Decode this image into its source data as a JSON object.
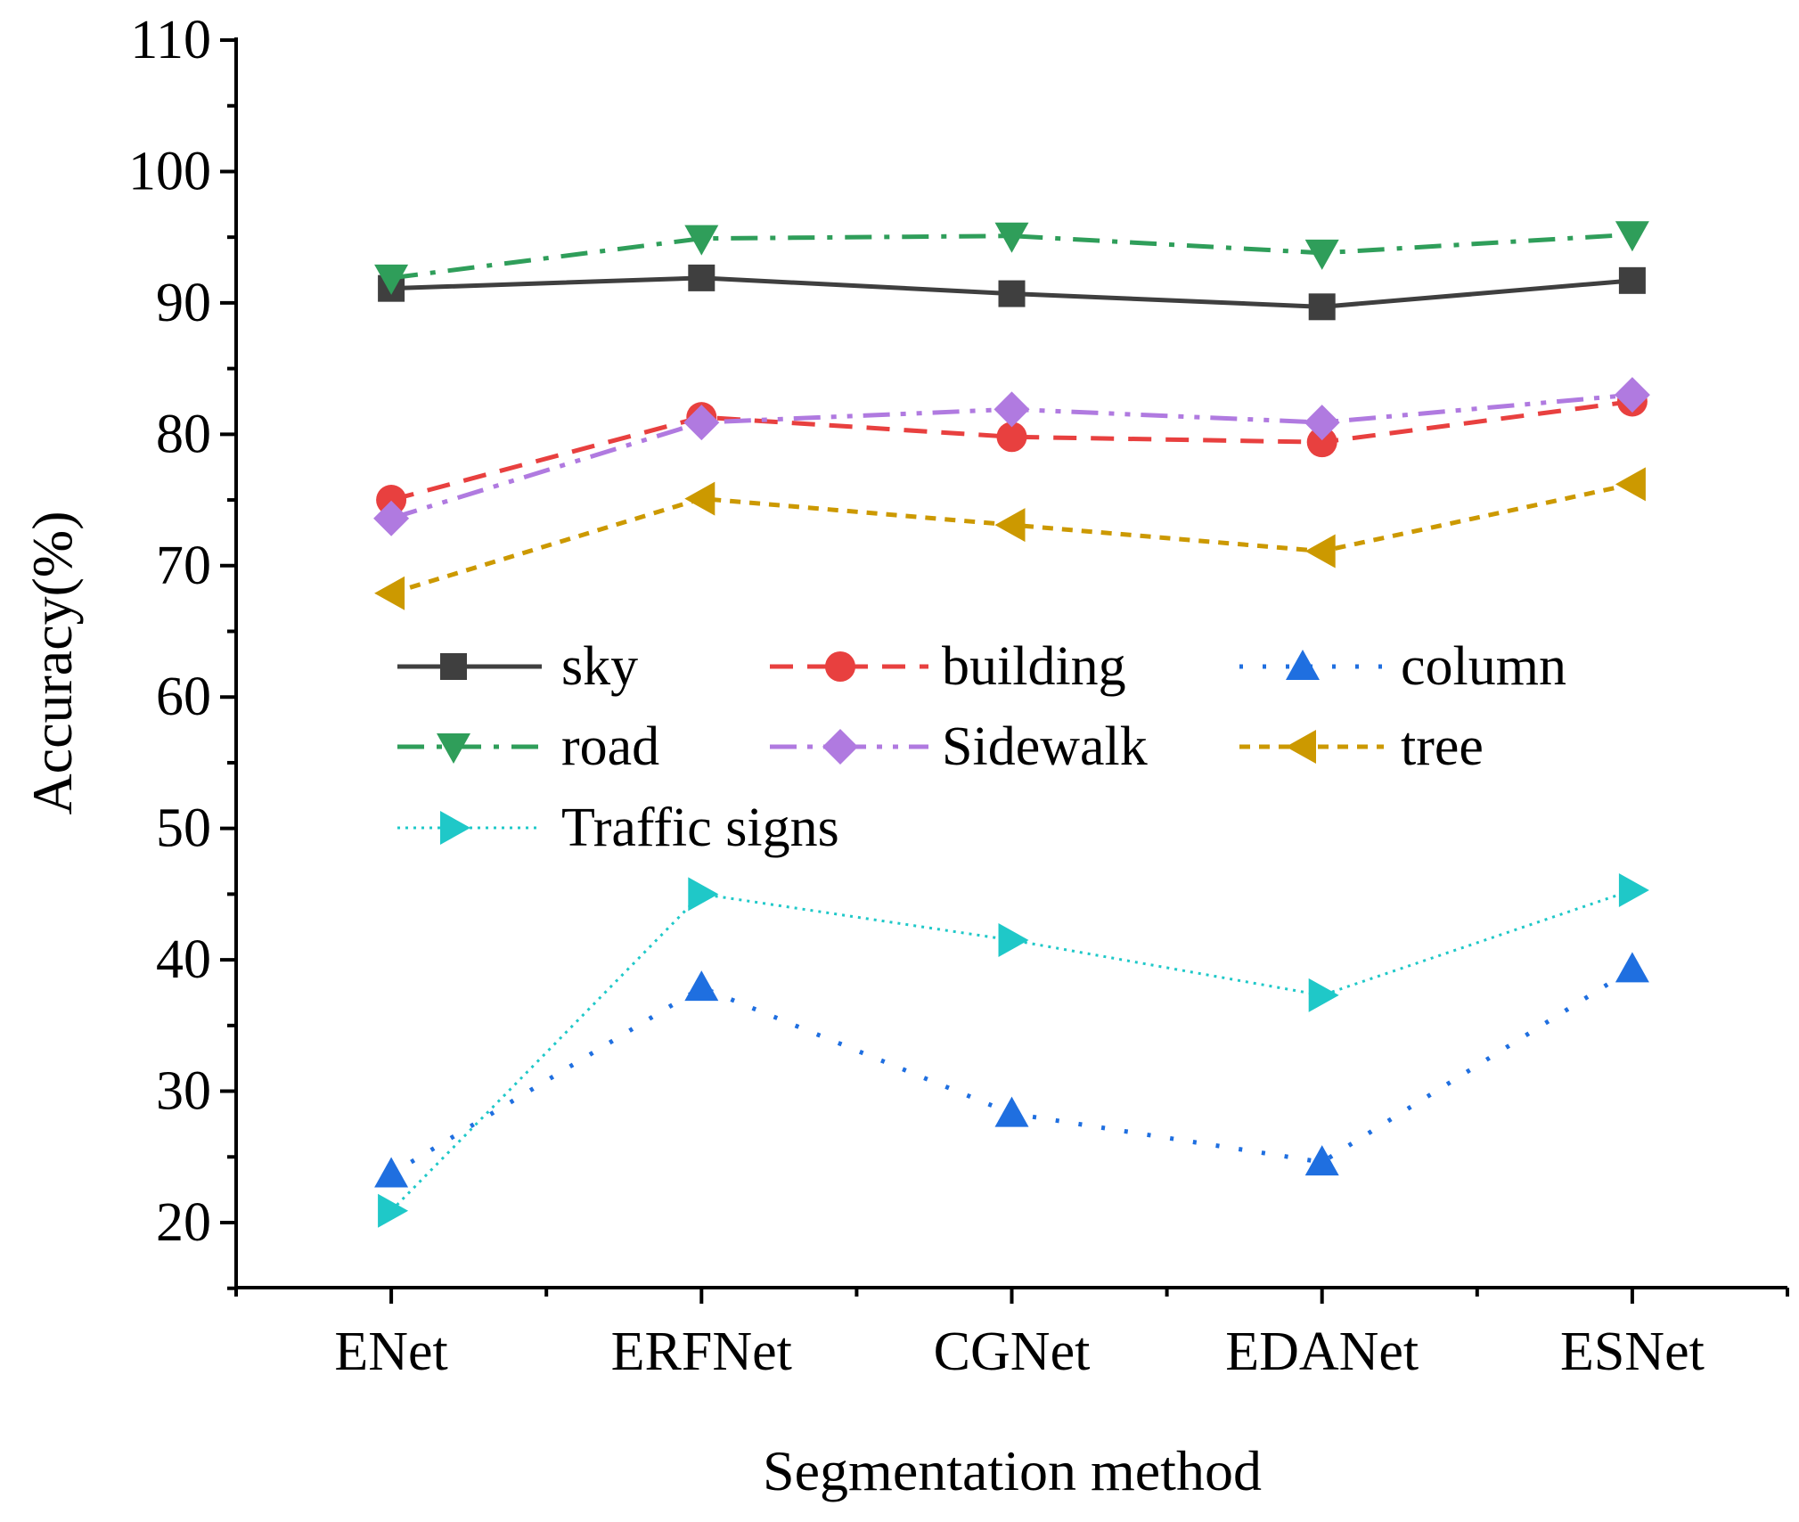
{
  "chart_data": {
    "type": "line",
    "title": "",
    "xlabel": "Segmentation method",
    "ylabel": "Accuracy(%)",
    "categories": [
      "ENet",
      "ERFNet",
      "CGNet",
      "EDANet",
      "ESNet"
    ],
    "ylim": [
      15,
      110
    ],
    "yticks": [
      20,
      30,
      40,
      50,
      60,
      70,
      80,
      90,
      100,
      110
    ],
    "grid": false,
    "legend_placement": "center-left",
    "series": [
      {
        "name": "sky",
        "color": "#3f3f3f",
        "dash": "solid",
        "marker": "square",
        "values": [
          91.1,
          91.9,
          90.7,
          89.7,
          91.7
        ]
      },
      {
        "name": "building",
        "color": "#e8403f",
        "dash": "dash",
        "marker": "circle",
        "values": [
          75.0,
          81.3,
          79.8,
          79.4,
          82.5
        ]
      },
      {
        "name": "column",
        "color": "#1f6fe0",
        "dash": "dot",
        "marker": "triangle-up",
        "values": [
          23.7,
          37.9,
          28.3,
          24.6,
          39.3
        ]
      },
      {
        "name": "road",
        "color": "#2f9e5a",
        "dash": "dashdot",
        "marker": "triangle-down",
        "values": [
          91.9,
          94.9,
          95.1,
          93.8,
          95.2
        ]
      },
      {
        "name": "Sidewalk",
        "color": "#b07ae0",
        "dash": "dashdotdot",
        "marker": "diamond",
        "values": [
          73.6,
          80.9,
          81.9,
          80.9,
          83.0
        ]
      },
      {
        "name": "tree",
        "color": "#cc9900",
        "dash": "shortdash",
        "marker": "triangle-left",
        "values": [
          67.9,
          75.1,
          73.1,
          71.1,
          76.2
        ]
      },
      {
        "name": "Traffic signs",
        "color": "#1fc8c8",
        "dash": "finedot",
        "marker": "triangle-right",
        "values": [
          20.9,
          45.0,
          41.5,
          37.3,
          45.3
        ]
      }
    ]
  }
}
